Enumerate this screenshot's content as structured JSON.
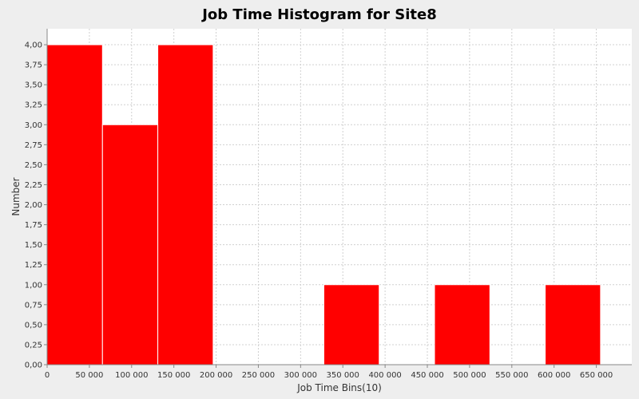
{
  "chart_data": {
    "type": "bar",
    "title": "Job Time Histogram for Site8",
    "xlabel": "Job Time Bins(10)",
    "ylabel": "Number",
    "xlim": [
      0,
      692000
    ],
    "ylim": [
      0,
      4.2
    ],
    "x_ticks": [
      0,
      50000,
      100000,
      150000,
      200000,
      250000,
      300000,
      350000,
      400000,
      450000,
      500000,
      550000,
      600000,
      650000
    ],
    "x_tick_labels": [
      "0",
      "50 000",
      "100 000",
      "150 000",
      "200 000",
      "250 000",
      "300 000",
      "350 000",
      "400 000",
      "450 000",
      "500 000",
      "550 000",
      "600 000",
      "650 000"
    ],
    "y_ticks": [
      0,
      0.25,
      0.5,
      0.75,
      1,
      1.25,
      1.5,
      1.75,
      2,
      2.25,
      2.5,
      2.75,
      3,
      3.25,
      3.5,
      3.75,
      4
    ],
    "y_tick_labels": [
      "0,00",
      "0,25",
      "0,50",
      "0,75",
      "1,00",
      "1,25",
      "1,50",
      "1,75",
      "2,00",
      "2,25",
      "2,50",
      "2,75",
      "3,00",
      "3,25",
      "3,50",
      "3,75",
      "4,00"
    ],
    "grid": true,
    "bar_color": "#ff0000",
    "bins": [
      {
        "start": 0,
        "end": 65500,
        "value": 4
      },
      {
        "start": 65500,
        "end": 131000,
        "value": 3
      },
      {
        "start": 131000,
        "end": 196500,
        "value": 4
      },
      {
        "start": 196500,
        "end": 262000,
        "value": 0
      },
      {
        "start": 262000,
        "end": 327500,
        "value": 0
      },
      {
        "start": 327500,
        "end": 393000,
        "value": 1
      },
      {
        "start": 393000,
        "end": 458500,
        "value": 0
      },
      {
        "start": 458500,
        "end": 524000,
        "value": 1
      },
      {
        "start": 524000,
        "end": 589500,
        "value": 0
      },
      {
        "start": 589500,
        "end": 655000,
        "value": 1
      }
    ]
  }
}
